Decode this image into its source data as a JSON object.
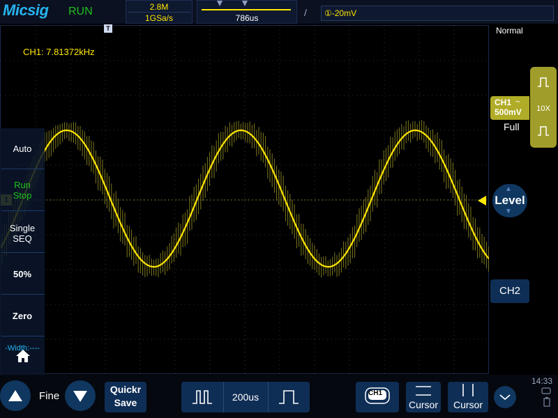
{
  "header": {
    "logo": "Micsig",
    "run_status": "RUN",
    "memory_depth": "2.8M",
    "sample_rate": "1GSa/s",
    "time_offset": "786us",
    "trigger_level": "①-20mV"
  },
  "scope": {
    "frequency_readout": "CH1: 7.81372kHz",
    "trigger_marker": "T",
    "channel_marker": "1"
  },
  "left_menu": {
    "auto": "Auto",
    "run_stop_1": "Run",
    "run_stop_2": "Stop",
    "single_1": "Single",
    "single_2": "SEQ",
    "fifty": "50%",
    "zero": "Zero",
    "width": "-Width:----"
  },
  "right_panel": {
    "mode": "Normal",
    "ch1_name": "CH1",
    "ch1_coupling": "~",
    "ch1_scale": "500mV",
    "probe": "10X",
    "bandwidth": "Full",
    "level_label": "Level",
    "ch2_label": "CH2"
  },
  "bottom_bar": {
    "fine_label": "Fine",
    "quick_save_1": "Quickr",
    "quick_save_2": "Save",
    "timebase": "200us",
    "ch1_button": "CH1",
    "cursor_h": "Cursor",
    "cursor_v": "Cursor",
    "clock": "14:33"
  },
  "colors": {
    "trace": "#ffe600",
    "run_green": "#1ec21e",
    "logo_blue": "#27b3f0",
    "ch1_olive": "#a19d2a"
  }
}
